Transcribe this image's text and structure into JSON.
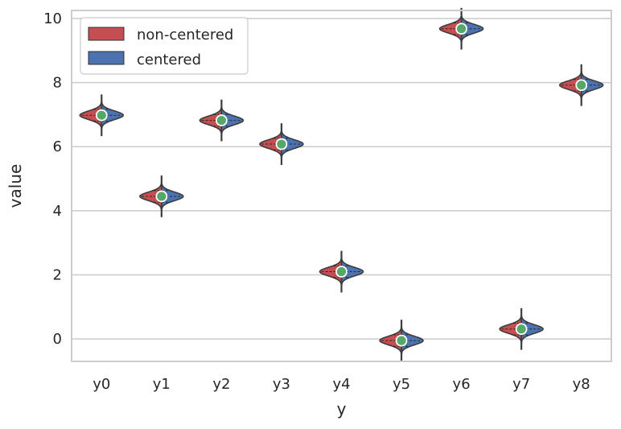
{
  "chart_data": {
    "type": "violin",
    "split": true,
    "categories": [
      "y0",
      "y1",
      "y2",
      "y3",
      "y4",
      "y5",
      "y6",
      "y7",
      "y8"
    ],
    "xlabel": "y",
    "ylabel": "value",
    "ylim": [
      -0.7,
      10.25
    ],
    "yticks": [
      0,
      2,
      4,
      6,
      8,
      10
    ],
    "grid": "horizontal",
    "legend_position": "top-left",
    "series": [
      {
        "name": "non-centered",
        "color": "#c44e52",
        "means": [
          6.98,
          4.45,
          6.82,
          6.08,
          2.1,
          -0.05,
          9.68,
          0.31,
          7.92
        ]
      },
      {
        "name": "centered",
        "color": "#4c72b0",
        "means": [
          6.98,
          4.45,
          6.82,
          6.08,
          2.1,
          -0.05,
          9.68,
          0.31,
          7.92
        ]
      }
    ],
    "spread": {
      "body_half_height": 0.4,
      "whisker_half_height": 0.65
    },
    "marker_color": "#55a868"
  }
}
